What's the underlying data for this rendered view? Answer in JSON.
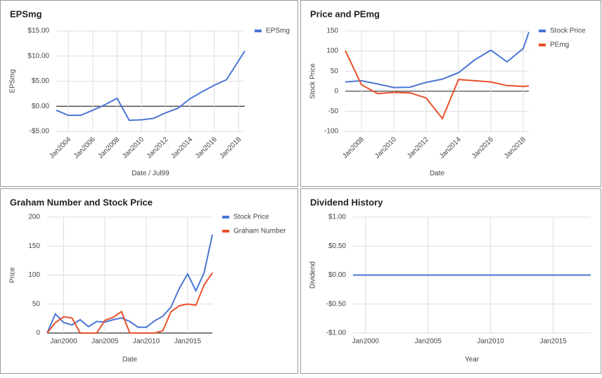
{
  "chart_data": [
    {
      "type": "line",
      "title": "EPSmg",
      "x_label": "Date / Jul99",
      "y_label": "EPSmg",
      "x": [
        2003,
        2004,
        2005,
        2006,
        2007,
        2008,
        2009,
        2010,
        2011,
        2012,
        2013,
        2014,
        2015,
        2016,
        2017,
        2018.5
      ],
      "series": [
        {
          "name": "EPSmg",
          "color": "#4a76d4",
          "values": [
            -0.8,
            -1.8,
            -1.8,
            -0.8,
            0.3,
            1.6,
            -2.8,
            -2.7,
            -2.4,
            -1.3,
            -0.4,
            1.5,
            2.9,
            4.2,
            5.3,
            11.0
          ]
        }
      ],
      "xlim": [
        2003,
        2018.5
      ],
      "xticks": [
        {
          "value": 2004,
          "label": "Jan2004"
        },
        {
          "value": 2006,
          "label": "Jan2006"
        },
        {
          "value": 2008,
          "label": "Jan2008"
        },
        {
          "value": 2010,
          "label": "Jan2010"
        },
        {
          "value": 2012,
          "label": "Jan2012"
        },
        {
          "value": 2014,
          "label": "Jan2014"
        },
        {
          "value": 2016,
          "label": "Jan2016"
        },
        {
          "value": 2018,
          "label": "Jan2018"
        }
      ],
      "ylim": [
        -5,
        15
      ],
      "yticks": [
        {
          "value": -5,
          "label": "-$5.00"
        },
        {
          "value": 0,
          "label": "$0.00"
        },
        {
          "value": 5,
          "label": "$5.00"
        },
        {
          "value": 10,
          "label": "$10.00"
        },
        {
          "value": 15,
          "label": "$15.00"
        }
      ],
      "grid": true,
      "legend": "right",
      "rotate_x_labels": true
    },
    {
      "type": "line",
      "title": "Price and PEmg",
      "x_label": "Date",
      "y_label": "Stock Price",
      "x": [
        2007,
        2008,
        2009,
        2010,
        2011,
        2012,
        2013,
        2014,
        2015,
        2016,
        2017,
        2018,
        2018.35
      ],
      "series": [
        {
          "name": "Stock Price",
          "color": "#4a76d4",
          "values": [
            23,
            26,
            18,
            9,
            10,
            22,
            30,
            46,
            78,
            102,
            73,
            106,
            147
          ]
        },
        {
          "name": "PEmg",
          "color": "#e8512b",
          "values": [
            101,
            16,
            -6,
            -3,
            -4,
            -17,
            -68,
            29,
            26,
            23,
            14,
            12,
            13
          ]
        }
      ],
      "xlim": [
        2007,
        2018.35
      ],
      "xticks": [
        {
          "value": 2008,
          "label": "Jan2008"
        },
        {
          "value": 2010,
          "label": "Jan2010"
        },
        {
          "value": 2012,
          "label": "Jan2012"
        },
        {
          "value": 2014,
          "label": "Jan2014"
        },
        {
          "value": 2016,
          "label": "Jan2016"
        },
        {
          "value": 2018,
          "label": "Jan2018"
        }
      ],
      "ylim": [
        -100,
        150
      ],
      "yticks": [
        -100,
        -50,
        0,
        50,
        100,
        150
      ],
      "grid": true,
      "legend": "right",
      "rotate_x_labels": true
    },
    {
      "type": "line",
      "title": "Graham Number and Stock Price",
      "x_label": "Date",
      "y_label": "Price",
      "x": [
        1998,
        1999,
        2000,
        2001,
        2002,
        2003,
        2004,
        2005,
        2006,
        2007,
        2008,
        2009,
        2010,
        2011,
        2012,
        2013,
        2014,
        2015,
        2016,
        2017,
        2018
      ],
      "series": [
        {
          "name": "Stock Price",
          "color": "#4a76d4",
          "values": [
            0,
            33,
            18,
            14,
            23,
            11,
            20,
            19,
            23,
            26,
            20,
            10,
            10,
            21,
            29,
            45,
            77,
            102,
            73,
            104,
            170
          ]
        },
        {
          "name": "Graham Number",
          "color": "#e8512b",
          "values": [
            0,
            18,
            28,
            26,
            0,
            0,
            0,
            22,
            27,
            37,
            0,
            0,
            0,
            0,
            4,
            37,
            47,
            50,
            48,
            83,
            104
          ]
        }
      ],
      "xlim": [
        1998,
        2018
      ],
      "xticks": [
        {
          "value": 2000,
          "label": "Jan2000"
        },
        {
          "value": 2005,
          "label": "Jan2005"
        },
        {
          "value": 2010,
          "label": "Jan2010"
        },
        {
          "value": 2015,
          "label": "Jan2015"
        }
      ],
      "ylim": [
        0,
        200
      ],
      "yticks": [
        0,
        50,
        100,
        150,
        200
      ],
      "grid": true,
      "legend": "right",
      "rotate_x_labels": false
    },
    {
      "type": "line",
      "title": "Dividend History",
      "x_label": "Year",
      "y_label": "Dividend",
      "x": [
        1999,
        2000,
        2001,
        2002,
        2003,
        2004,
        2005,
        2006,
        2007,
        2008,
        2009,
        2010,
        2011,
        2012,
        2013,
        2014,
        2015,
        2016,
        2017,
        2018
      ],
      "series": [
        {
          "color": "#4a76d4",
          "values": [
            0,
            0,
            0,
            0,
            0,
            0,
            0,
            0,
            0,
            0,
            0,
            0,
            0,
            0,
            0,
            0,
            0,
            0,
            0,
            0
          ]
        }
      ],
      "xlim": [
        1999,
        2018
      ],
      "xticks": [
        {
          "value": 2000,
          "label": "Jan2000"
        },
        {
          "value": 2005,
          "label": "Jan2005"
        },
        {
          "value": 2010,
          "label": "Jan2010"
        },
        {
          "value": 2015,
          "label": "Jan2015"
        }
      ],
      "ylim": [
        -1,
        1
      ],
      "yticks": [
        {
          "value": -1,
          "label": "-$1.00"
        },
        {
          "value": -0.5,
          "label": "-$0.50"
        },
        {
          "value": 0,
          "label": "$0.00"
        },
        {
          "value": 0.5,
          "label": "$0.50"
        },
        {
          "value": 1,
          "label": "$1.00"
        }
      ],
      "grid": true,
      "rotate_x_labels": false
    }
  ]
}
